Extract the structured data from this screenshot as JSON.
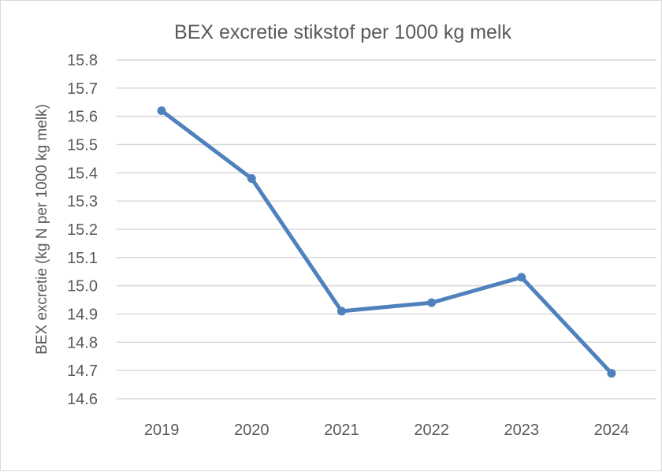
{
  "chart_data": {
    "type": "line",
    "title": "BEX excretie stikstof per 1000 kg melk",
    "xlabel": "",
    "ylabel": "BEX excretie (kg N per 1000 kg melk)",
    "categories": [
      "2019",
      "2020",
      "2021",
      "2022",
      "2023",
      "2024"
    ],
    "series": [
      {
        "name": "BEX excretie",
        "values": [
          15.62,
          15.38,
          14.91,
          14.94,
          15.03,
          14.69
        ],
        "color": "#4f81bd"
      }
    ],
    "ylim": [
      14.6,
      15.8
    ],
    "yticks": [
      "15.8",
      "15.7",
      "15.6",
      "15.5",
      "15.4",
      "15.3",
      "15.2",
      "15.1",
      "15.0",
      "14.9",
      "14.8",
      "14.7",
      "14.6"
    ],
    "grid": true,
    "legend": "none"
  },
  "colors": {
    "line": "#4f81bd",
    "grid": "#d9d9d9",
    "text": "#595959"
  }
}
